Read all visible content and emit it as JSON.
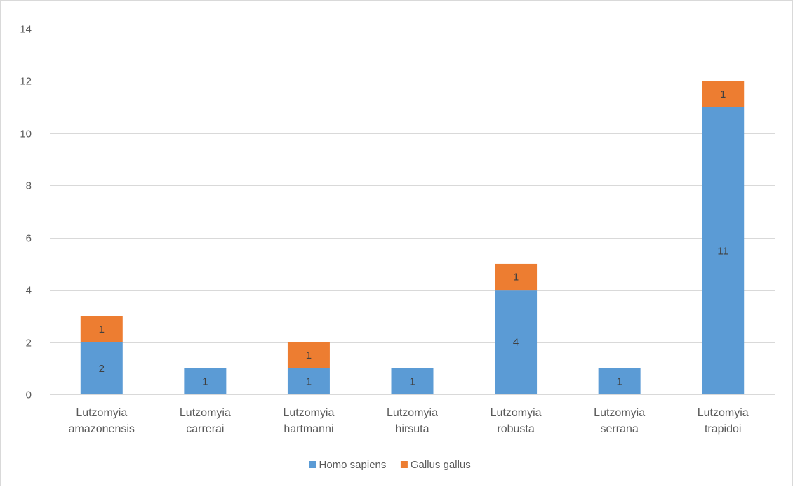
{
  "chart_data": {
    "type": "bar",
    "stacked": true,
    "title": "",
    "xlabel": "",
    "ylabel": "",
    "categories": [
      [
        "Lutzomyia",
        "amazonensis"
      ],
      [
        "Lutzomyia",
        "carrerai"
      ],
      [
        "Lutzomyia",
        "hartmanni"
      ],
      [
        "Lutzomyia",
        "hirsuta"
      ],
      [
        "Lutzomyia",
        "robusta"
      ],
      [
        "Lutzomyia",
        "serrana"
      ],
      [
        "Lutzomyia",
        "trapidoi"
      ]
    ],
    "series": [
      {
        "name": "Homo sapiens",
        "color": "#5b9bd5",
        "values": [
          2,
          1,
          1,
          1,
          4,
          1,
          11
        ]
      },
      {
        "name": "Gallus gallus",
        "color": "#ed7d31",
        "values": [
          1,
          0,
          1,
          0,
          1,
          0,
          1
        ]
      }
    ],
    "ylim": [
      0,
      14
    ],
    "yticks": [
      0,
      2,
      4,
      6,
      8,
      10,
      12,
      14
    ],
    "grid": true,
    "legend": "bottom",
    "data_labels": true,
    "gridline_color": "#d9d9d9",
    "label_color": "#595959"
  }
}
